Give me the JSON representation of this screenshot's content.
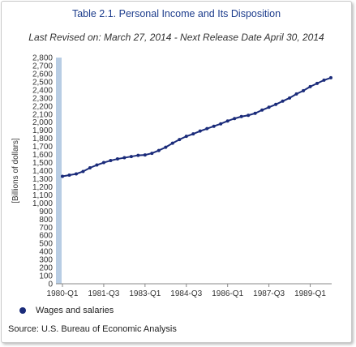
{
  "title": "Table 2.1. Personal Income and Its Disposition",
  "subtitle": "Last Revised on: March 27, 2014 - Next Release Date April 30, 2014",
  "source": "Source: U.S. Bureau of Economic Analysis",
  "colors": {
    "series": "#1a2b7a",
    "axis_bar": "#b8cde4",
    "title": "#1c3c8c"
  },
  "chart_data": {
    "type": "line",
    "title": "Table 2.1. Personal Income and Its Disposition",
    "ylabel": "[Billions of dollars]",
    "xlabel": "",
    "ylim": [
      0,
      2800
    ],
    "yticks": [
      0,
      100,
      200,
      300,
      400,
      500,
      600,
      700,
      800,
      900,
      1000,
      1100,
      1200,
      1300,
      1400,
      1500,
      1600,
      1700,
      1800,
      1900,
      2000,
      2100,
      2200,
      2300,
      2400,
      2500,
      2600,
      2700,
      2800
    ],
    "ytick_labels": [
      "0",
      "100",
      "200",
      "300",
      "400",
      "500",
      "600",
      "700",
      "800",
      "900",
      "1,000",
      "1,100",
      "1,200",
      "1,300",
      "1,400",
      "1,500",
      "1,600",
      "1,700",
      "1,800",
      "1,900",
      "2,000",
      "2,100",
      "2,200",
      "2,300",
      "2,400",
      "2,500",
      "2,600",
      "2,700",
      "2,800"
    ],
    "xtick_labels": [
      {
        "label": "1980-Q1",
        "index": 0
      },
      {
        "label": "1981-Q3",
        "index": 6
      },
      {
        "label": "1983-Q1",
        "index": 12
      },
      {
        "label": "1984-Q3",
        "index": 18
      },
      {
        "label": "1986-Q1",
        "index": 24
      },
      {
        "label": "1987-Q3",
        "index": 30
      },
      {
        "label": "1989-Q1",
        "index": 36
      }
    ],
    "legend_position": "bottom-left",
    "grid": false,
    "series": [
      {
        "name": "Wages and salaries",
        "x": [
          "1980-Q1",
          "1980-Q2",
          "1980-Q3",
          "1980-Q4",
          "1981-Q1",
          "1981-Q2",
          "1981-Q3",
          "1981-Q4",
          "1982-Q1",
          "1982-Q2",
          "1982-Q3",
          "1982-Q4",
          "1983-Q1",
          "1983-Q2",
          "1983-Q3",
          "1983-Q4",
          "1984-Q1",
          "1984-Q2",
          "1984-Q3",
          "1984-Q4",
          "1985-Q1",
          "1985-Q2",
          "1985-Q3",
          "1985-Q4",
          "1986-Q1",
          "1986-Q2",
          "1986-Q3",
          "1986-Q4",
          "1987-Q1",
          "1987-Q2",
          "1987-Q3",
          "1987-Q4",
          "1988-Q1",
          "1988-Q2",
          "1988-Q3",
          "1988-Q4",
          "1989-Q1",
          "1989-Q2",
          "1989-Q3",
          "1989-Q4"
        ],
        "values": [
          1330,
          1345,
          1360,
          1390,
          1435,
          1470,
          1500,
          1525,
          1545,
          1560,
          1575,
          1590,
          1595,
          1615,
          1650,
          1690,
          1740,
          1785,
          1825,
          1855,
          1890,
          1920,
          1950,
          1980,
          2015,
          2045,
          2070,
          2085,
          2110,
          2150,
          2185,
          2220,
          2260,
          2300,
          2350,
          2390,
          2440,
          2480,
          2520,
          2550
        ]
      }
    ]
  }
}
